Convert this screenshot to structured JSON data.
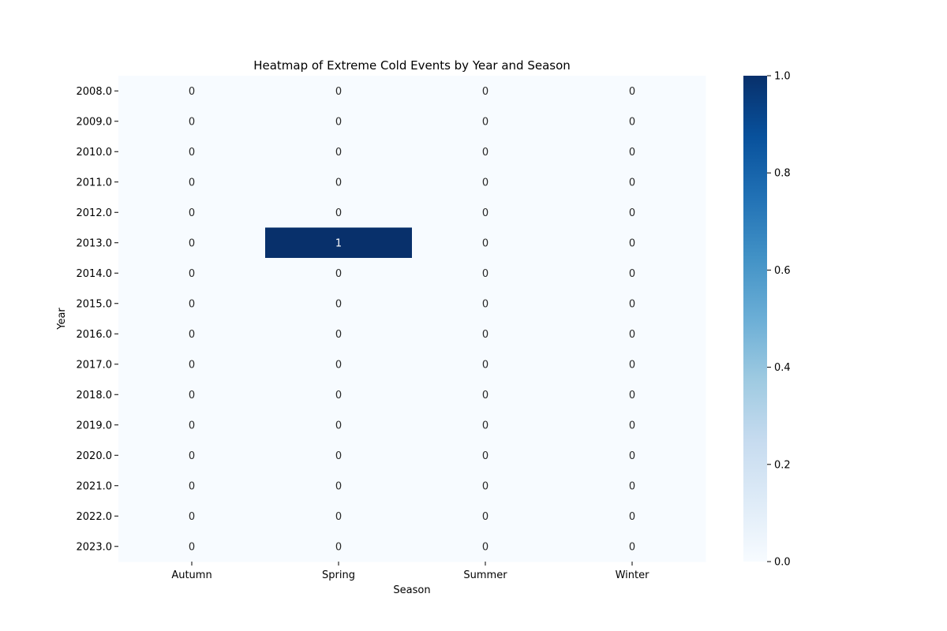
{
  "chart_data": {
    "type": "heatmap",
    "title": "Heatmap of Extreme Cold Events by Year and Season",
    "xlabel": "Season",
    "ylabel": "Year",
    "x_categories": [
      "Autumn",
      "Spring",
      "Summer",
      "Winter"
    ],
    "y_categories": [
      "2008.0",
      "2009.0",
      "2010.0",
      "2011.0",
      "2012.0",
      "2013.0",
      "2014.0",
      "2015.0",
      "2016.0",
      "2017.0",
      "2018.0",
      "2019.0",
      "2020.0",
      "2021.0",
      "2022.0",
      "2023.0"
    ],
    "values": [
      [
        0,
        0,
        0,
        0
      ],
      [
        0,
        0,
        0,
        0
      ],
      [
        0,
        0,
        0,
        0
      ],
      [
        0,
        0,
        0,
        0
      ],
      [
        0,
        0,
        0,
        0
      ],
      [
        0,
        1,
        0,
        0
      ],
      [
        0,
        0,
        0,
        0
      ],
      [
        0,
        0,
        0,
        0
      ],
      [
        0,
        0,
        0,
        0
      ],
      [
        0,
        0,
        0,
        0
      ],
      [
        0,
        0,
        0,
        0
      ],
      [
        0,
        0,
        0,
        0
      ],
      [
        0,
        0,
        0,
        0
      ],
      [
        0,
        0,
        0,
        0
      ],
      [
        0,
        0,
        0,
        0
      ],
      [
        0,
        0,
        0,
        0
      ]
    ],
    "colormap": "Blues",
    "color_low": "#f7fbff",
    "color_high": "#08306b",
    "vmin": 0,
    "vmax": 1,
    "colorbar_ticks": [
      "0.0",
      "0.2",
      "0.4",
      "0.6",
      "0.8",
      "1.0"
    ],
    "annotations_shown": true
  }
}
